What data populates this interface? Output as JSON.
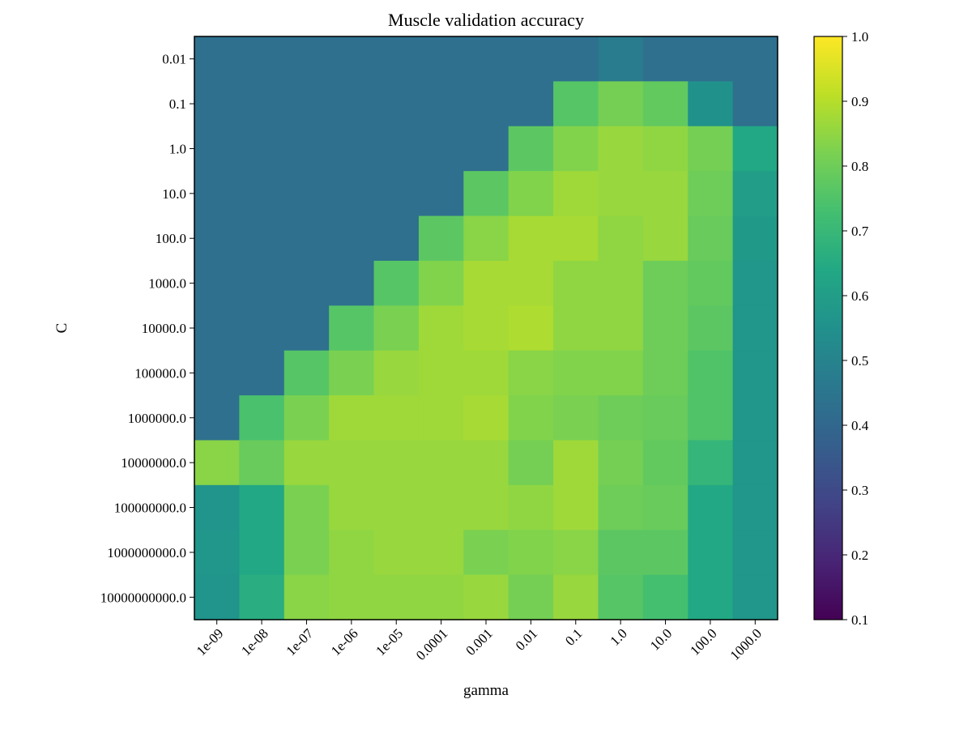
{
  "chart_data": {
    "type": "heatmap",
    "title": "Muscle validation accuracy",
    "xlabel": "gamma",
    "ylabel": "C",
    "x_categories": [
      "1e-09",
      "1e-08",
      "1e-07",
      "1e-06",
      "1e-05",
      "0.0001",
      "0.001",
      "0.01",
      "0.1",
      "1.0",
      "10.0",
      "100.0",
      "1000.0"
    ],
    "y_categories": [
      "0.01",
      "0.1",
      "1.0",
      "10.0",
      "100.0",
      "1000.0",
      "10000.0",
      "100000.0",
      "1000000.0",
      "10000000.0",
      "100000000.0",
      "1000000000.0",
      "10000000000.0"
    ],
    "values": [
      [
        0.43,
        0.43,
        0.43,
        0.43,
        0.43,
        0.43,
        0.43,
        0.43,
        0.43,
        0.47,
        0.43,
        0.43,
        0.43
      ],
      [
        0.43,
        0.43,
        0.43,
        0.43,
        0.43,
        0.43,
        0.43,
        0.43,
        0.76,
        0.81,
        0.78,
        0.55,
        0.43
      ],
      [
        0.43,
        0.43,
        0.43,
        0.43,
        0.43,
        0.43,
        0.43,
        0.77,
        0.83,
        0.86,
        0.85,
        0.81,
        0.64
      ],
      [
        0.43,
        0.43,
        0.43,
        0.43,
        0.43,
        0.43,
        0.77,
        0.83,
        0.87,
        0.86,
        0.86,
        0.8,
        0.6
      ],
      [
        0.43,
        0.43,
        0.43,
        0.43,
        0.43,
        0.77,
        0.84,
        0.88,
        0.88,
        0.85,
        0.86,
        0.79,
        0.58
      ],
      [
        0.43,
        0.43,
        0.43,
        0.43,
        0.76,
        0.83,
        0.88,
        0.88,
        0.85,
        0.85,
        0.8,
        0.78,
        0.57
      ],
      [
        0.43,
        0.43,
        0.43,
        0.76,
        0.82,
        0.87,
        0.88,
        0.89,
        0.85,
        0.85,
        0.8,
        0.77,
        0.57
      ],
      [
        0.43,
        0.43,
        0.76,
        0.82,
        0.86,
        0.87,
        0.87,
        0.84,
        0.83,
        0.83,
        0.8,
        0.75,
        0.57
      ],
      [
        0.43,
        0.74,
        0.82,
        0.87,
        0.87,
        0.87,
        0.88,
        0.83,
        0.82,
        0.8,
        0.79,
        0.75,
        0.57
      ],
      [
        0.84,
        0.79,
        0.86,
        0.86,
        0.86,
        0.86,
        0.86,
        0.81,
        0.87,
        0.81,
        0.78,
        0.69,
        0.57
      ],
      [
        0.56,
        0.64,
        0.82,
        0.86,
        0.86,
        0.86,
        0.86,
        0.85,
        0.87,
        0.8,
        0.79,
        0.64,
        0.57
      ],
      [
        0.57,
        0.64,
        0.82,
        0.85,
        0.86,
        0.86,
        0.82,
        0.83,
        0.84,
        0.77,
        0.77,
        0.64,
        0.57
      ],
      [
        0.56,
        0.66,
        0.84,
        0.85,
        0.85,
        0.85,
        0.86,
        0.81,
        0.86,
        0.76,
        0.73,
        0.64,
        0.57
      ]
    ],
    "colormap": "viridis",
    "colorbar": {
      "range": [
        0.1,
        1.0
      ],
      "ticks": [
        "0.1",
        "0.2",
        "0.3",
        "0.4",
        "0.5",
        "0.6",
        "0.7",
        "0.8",
        "0.9",
        "1.0"
      ]
    },
    "grid": false
  }
}
